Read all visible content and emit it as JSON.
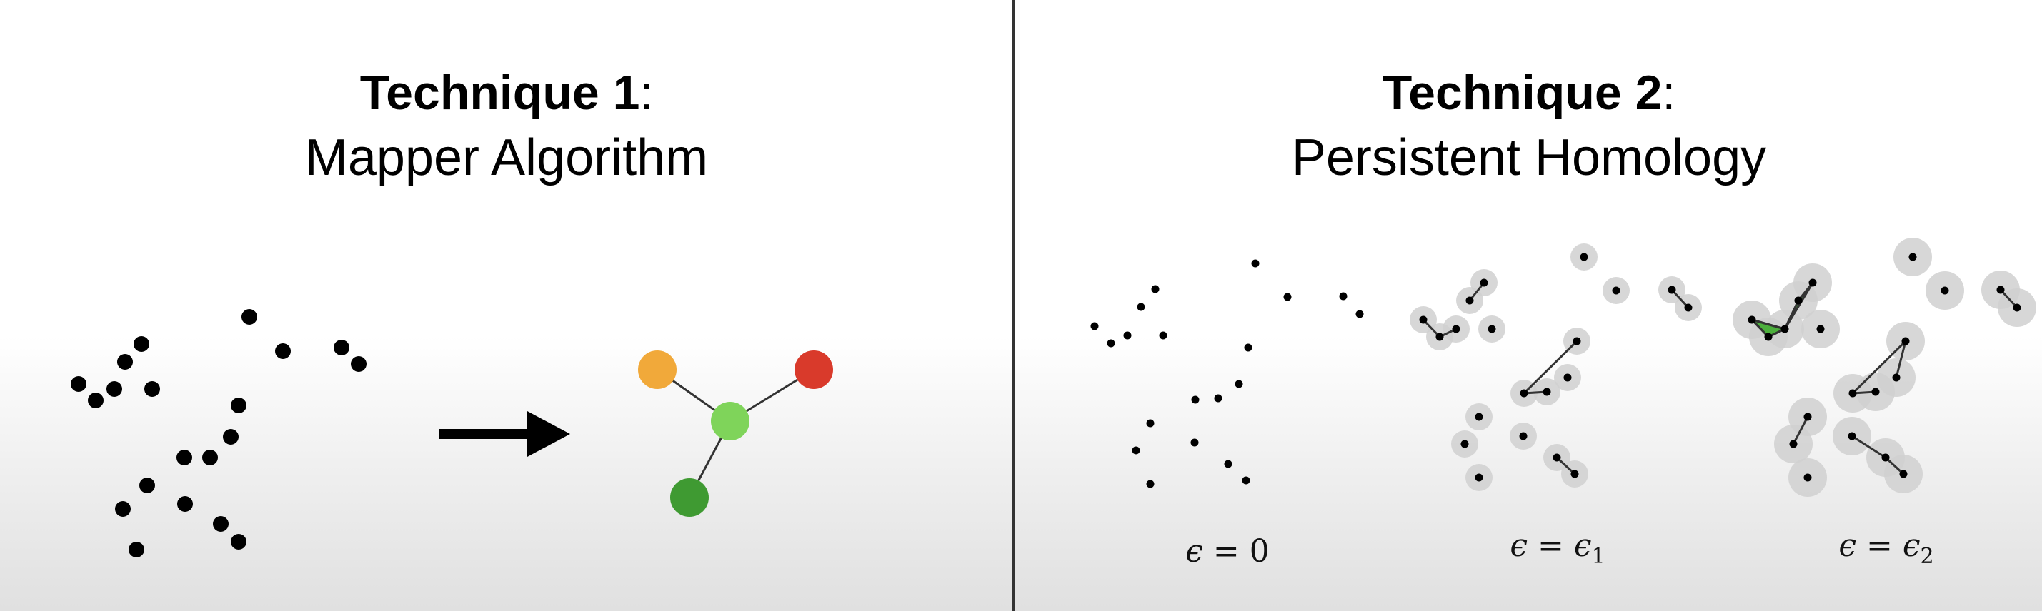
{
  "colors": {
    "point": "#000000",
    "edge": "#333333",
    "neighborhood": "#d0d0d0",
    "simplex": "#4caf3c",
    "node_orange": "#f1a93a",
    "node_red": "#d93a2b",
    "node_lightgreen": "#7fd45a",
    "node_darkgreen": "#3f9a32"
  },
  "technique1": {
    "title_bold": "Technique 1",
    "title_suffix": ":",
    "subtitle": "Mapper Algorithm",
    "arrow_icon": "right-arrow-icon",
    "graph_nodes": [
      "orange",
      "red",
      "light-green",
      "dark-green"
    ]
  },
  "technique2": {
    "title_bold": "Technique 2",
    "title_suffix": ":",
    "subtitle": "Persistent Homology",
    "epsilon_labels": {
      "eps_0": {
        "symbol": "ϵ",
        "relation": " = ",
        "value": "0"
      },
      "eps_1": {
        "symbol": "ϵ",
        "relation": " = ",
        "value": "ϵ",
        "subscript": "1"
      },
      "eps_2": {
        "symbol": "ϵ",
        "relation": " = ",
        "value": "ϵ",
        "subscript": "2"
      }
    }
  }
}
